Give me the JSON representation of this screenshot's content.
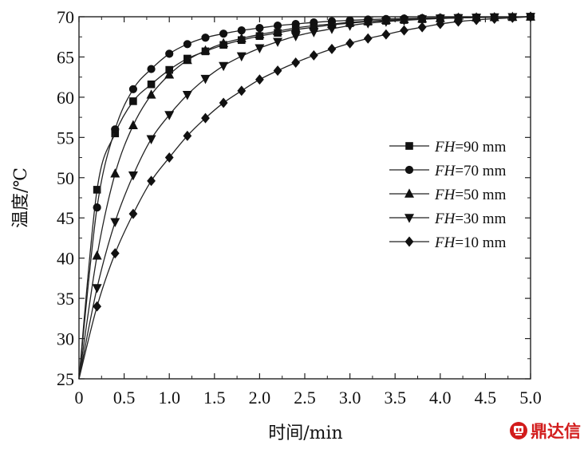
{
  "chart_data": {
    "type": "line",
    "xlabel": "时间/min",
    "ylabel": "温度/℃",
    "xlim": [
      0,
      5.0
    ],
    "ylim": [
      25,
      70
    ],
    "xticks": [
      "0",
      "0.5",
      "1.0",
      "1.5",
      "2.0",
      "2.5",
      "3.0",
      "3.5",
      "4.0",
      "4.5",
      "5.0"
    ],
    "yticks": [
      "25",
      "30",
      "35",
      "40",
      "45",
      "50",
      "55",
      "60",
      "65",
      "70"
    ],
    "legend_position": "center-right",
    "grid": false,
    "x": [
      0,
      0.2,
      0.4,
      0.6,
      0.8,
      1.0,
      1.2,
      1.4,
      1.6,
      1.8,
      2.0,
      2.2,
      2.4,
      2.6,
      2.8,
      3.0,
      3.2,
      3.4,
      3.6,
      3.8,
      4.0,
      4.2,
      4.4,
      4.6,
      4.8,
      5.0
    ],
    "series": [
      {
        "name_prefix": "FH",
        "name_suffix": "=90 mm",
        "marker": "square",
        "values": [
          25,
          48.5,
          55.5,
          59.5,
          61.6,
          63.4,
          64.8,
          65.7,
          66.5,
          67.1,
          67.6,
          68.0,
          68.4,
          68.7,
          69.0,
          69.2,
          69.4,
          69.5,
          69.6,
          69.7,
          69.8,
          69.85,
          69.9,
          69.93,
          69.96,
          70.0
        ]
      },
      {
        "name_prefix": "FH",
        "name_suffix": "=70 mm",
        "marker": "circle",
        "values": [
          25,
          46.3,
          56.0,
          61.0,
          63.5,
          65.4,
          66.6,
          67.4,
          67.9,
          68.3,
          68.6,
          68.9,
          69.1,
          69.3,
          69.45,
          69.55,
          69.65,
          69.72,
          69.78,
          69.83,
          69.87,
          69.9,
          69.93,
          69.95,
          69.97,
          70.0
        ]
      },
      {
        "name_prefix": "FH",
        "name_suffix": "=50 mm",
        "marker": "triangle-up",
        "values": [
          25,
          40.3,
          50.5,
          56.5,
          60.3,
          62.8,
          64.6,
          65.8,
          66.7,
          67.3,
          67.8,
          68.2,
          68.6,
          68.9,
          69.1,
          69.3,
          69.45,
          69.58,
          69.68,
          69.76,
          69.82,
          69.87,
          69.91,
          69.94,
          69.97,
          70.0
        ]
      },
      {
        "name_prefix": "FH",
        "name_suffix": "=30 mm",
        "marker": "triangle-down",
        "values": [
          25,
          36.3,
          44.5,
          50.3,
          54.8,
          57.8,
          60.3,
          62.3,
          63.9,
          65.1,
          66.1,
          66.9,
          67.6,
          68.1,
          68.5,
          68.9,
          69.2,
          69.4,
          69.55,
          69.68,
          69.78,
          69.85,
          69.9,
          69.94,
          69.97,
          70.0
        ]
      },
      {
        "name_prefix": "FH",
        "name_suffix": "=10 mm",
        "marker": "diamond",
        "values": [
          25,
          34.0,
          40.6,
          45.5,
          49.6,
          52.5,
          55.2,
          57.4,
          59.3,
          60.8,
          62.2,
          63.3,
          64.3,
          65.2,
          66.0,
          66.7,
          67.3,
          67.8,
          68.3,
          68.7,
          69.1,
          69.4,
          69.6,
          69.75,
          69.87,
          70.0
        ]
      }
    ]
  },
  "watermark": {
    "text": "鼎达信",
    "color": "#d21c1c",
    "icon": "logo-icon"
  }
}
